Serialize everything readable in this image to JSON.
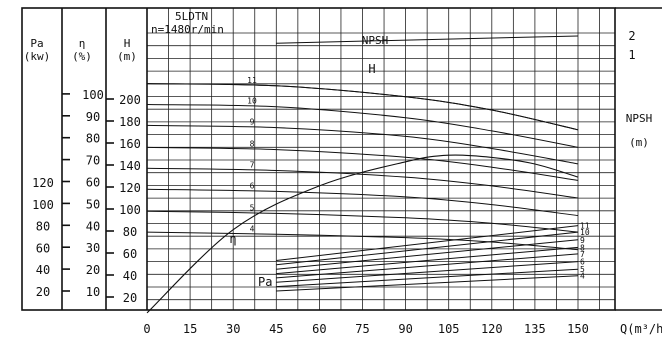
{
  "chart_data": {
    "type": "line",
    "title": "5LDTN",
    "subtitle": "n=1480r/min",
    "x": {
      "label": "Q",
      "unit": "(m³/h)",
      "ticks": [
        0,
        15,
        30,
        45,
        60,
        75,
        90,
        105,
        120,
        135,
        150
      ],
      "range": [
        0,
        150
      ]
    },
    "axes": {
      "pa": {
        "label": "Pa",
        "unit": "(kw)",
        "ticks": [
          20,
          40,
          60,
          80,
          100,
          120
        ]
      },
      "eff": {
        "label": "η",
        "unit": "(%)",
        "ticks": [
          10,
          20,
          30,
          40,
          50,
          60,
          70,
          80,
          90,
          100
        ]
      },
      "head": {
        "label": "H",
        "unit": "(m)",
        "ticks": [
          20,
          40,
          60,
          80,
          100,
          120,
          140,
          160,
          180,
          200
        ]
      },
      "npsh": {
        "label": "NPSH",
        "unit": "(m)",
        "ticks": [
          1,
          2
        ]
      }
    },
    "head_curves": [
      {
        "name": "11",
        "values": [
          [
            45,
            212
          ],
          [
            90,
            202
          ],
          [
            120,
            190
          ],
          [
            150,
            172
          ]
        ]
      },
      {
        "name": "10",
        "values": [
          [
            45,
            193
          ],
          [
            90,
            183
          ],
          [
            120,
            171
          ],
          [
            150,
            156
          ]
        ]
      },
      {
        "name": "9",
        "values": [
          [
            45,
            174
          ],
          [
            90,
            166
          ],
          [
            120,
            155
          ],
          [
            150,
            141
          ]
        ]
      },
      {
        "name": "8",
        "values": [
          [
            45,
            154
          ],
          [
            90,
            147
          ],
          [
            120,
            138
          ],
          [
            150,
            126
          ]
        ]
      },
      {
        "name": "7",
        "values": [
          [
            45,
            135
          ],
          [
            90,
            129
          ],
          [
            120,
            121
          ],
          [
            150,
            110
          ]
        ]
      },
      {
        "name": "6",
        "values": [
          [
            45,
            116
          ],
          [
            90,
            111
          ],
          [
            120,
            104
          ],
          [
            150,
            94
          ]
        ]
      },
      {
        "name": "5",
        "values": [
          [
            45,
            96
          ],
          [
            90,
            92
          ],
          [
            120,
            87
          ],
          [
            150,
            79
          ]
        ]
      },
      {
        "name": "4",
        "values": [
          [
            45,
            77
          ],
          [
            90,
            74
          ],
          [
            120,
            70
          ],
          [
            150,
            63
          ]
        ]
      }
    ],
    "head_main": {
      "name": "H",
      "values": [
        [
          0,
          214
        ],
        [
          45,
          212
        ],
        [
          90,
          202
        ],
        [
          120,
          190
        ],
        [
          150,
          172
        ]
      ]
    },
    "efficiency": {
      "name": "η",
      "values": [
        [
          0,
          0
        ],
        [
          30,
          38
        ],
        [
          60,
          58
        ],
        [
          90,
          69
        ],
        [
          105,
          72
        ],
        [
          120,
          71
        ],
        [
          135,
          68
        ],
        [
          150,
          62
        ]
      ]
    },
    "npsh": {
      "name": "NPSH",
      "values": [
        [
          45,
          1.62
        ],
        [
          150,
          2.0
        ]
      ]
    },
    "power_curves": [
      {
        "name": "11",
        "values": [
          [
            45,
            48
          ],
          [
            150,
            80
          ]
        ]
      },
      {
        "name": "10",
        "values": [
          [
            45,
            44
          ],
          [
            150,
            74
          ]
        ]
      },
      {
        "name": "9",
        "values": [
          [
            45,
            40
          ],
          [
            150,
            67
          ]
        ]
      },
      {
        "name": "8",
        "values": [
          [
            45,
            36
          ],
          [
            150,
            60
          ]
        ]
      },
      {
        "name": "7",
        "values": [
          [
            45,
            32
          ],
          [
            150,
            54
          ]
        ]
      },
      {
        "name": "6",
        "values": [
          [
            45,
            28
          ],
          [
            150,
            47
          ]
        ]
      },
      {
        "name": "5",
        "values": [
          [
            45,
            24
          ],
          [
            150,
            40
          ]
        ]
      },
      {
        "name": "4",
        "values": [
          [
            45,
            20
          ],
          [
            150,
            34
          ]
        ]
      }
    ],
    "power_label": "Pa",
    "npsh_label": "NPSH",
    "head_label": "H",
    "eff_label": "η",
    "grid": true
  }
}
